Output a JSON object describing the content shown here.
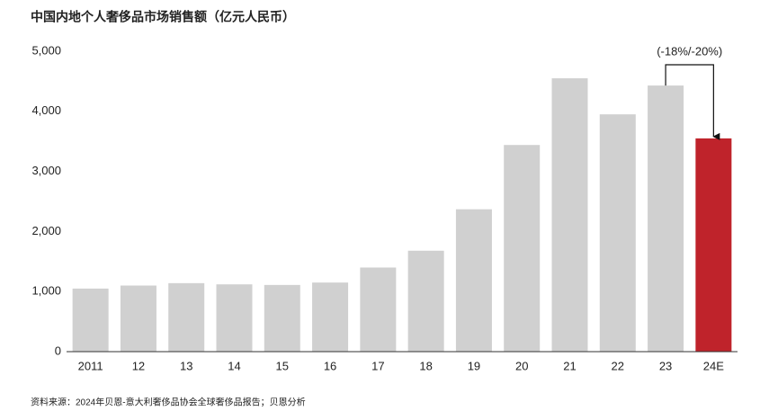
{
  "chart_data": {
    "type": "bar",
    "title": "中国内地个人奢侈品市场销售额（亿元人民币）",
    "categories": [
      "2011",
      "12",
      "13",
      "14",
      "15",
      "16",
      "17",
      "18",
      "19",
      "20",
      "21",
      "22",
      "23",
      "24E"
    ],
    "values": [
      1050,
      1100,
      1140,
      1120,
      1110,
      1150,
      1400,
      1680,
      2370,
      3440,
      4550,
      3950,
      4430,
      3550
    ],
    "colors": [
      "#d0d0d0",
      "#d0d0d0",
      "#d0d0d0",
      "#d0d0d0",
      "#d0d0d0",
      "#d0d0d0",
      "#d0d0d0",
      "#d0d0d0",
      "#d0d0d0",
      "#d0d0d0",
      "#d0d0d0",
      "#d0d0d0",
      "#d0d0d0",
      "#bf232b"
    ],
    "ylim": [
      0,
      5000
    ],
    "yticks": [
      0,
      {
        "value": 1000,
        "label": "1,000"
      },
      {
        "value": 2000,
        "label": "2,000"
      },
      {
        "value": 3000,
        "label": "3,000"
      },
      {
        "value": 4000,
        "label": "4,000"
      },
      {
        "value": 5000,
        "label": "5,000"
      }
    ],
    "grid": false,
    "annotation": "(-18%/-20%)",
    "source": "资料来源：2024年贝恩-意大利奢侈品协会全球奢侈品报告；贝恩分析"
  }
}
